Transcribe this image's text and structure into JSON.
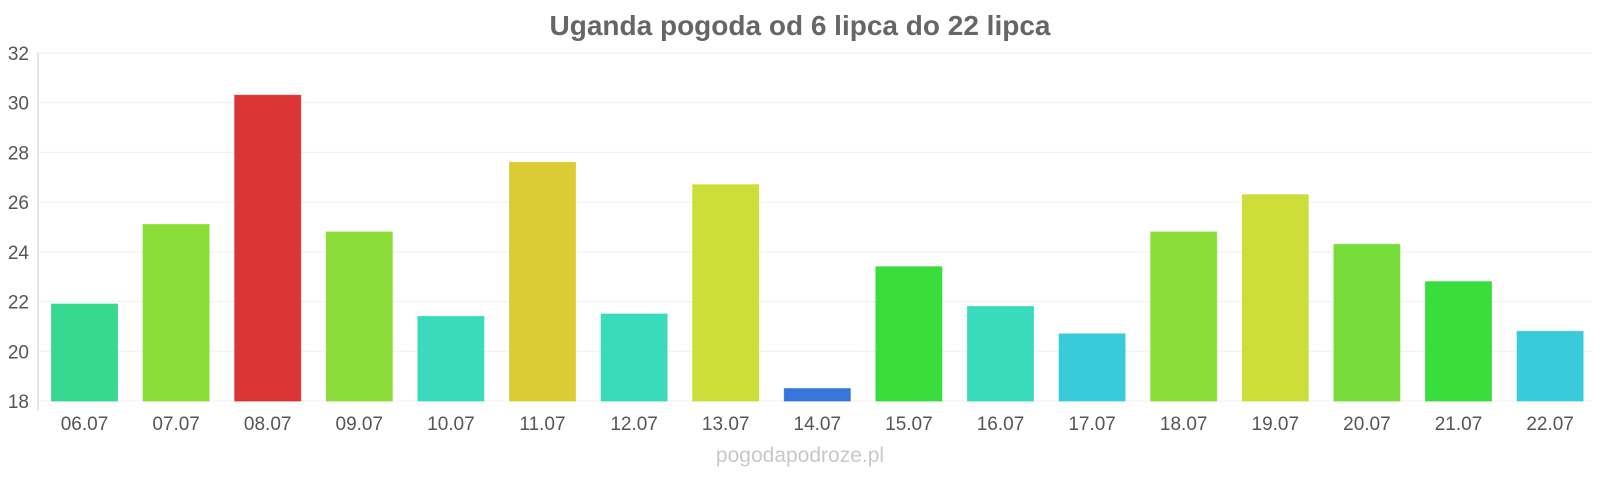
{
  "chart_data": {
    "type": "bar",
    "title": "Uganda pogoda od 6 lipca do 22 lipca",
    "xlabel": "",
    "ylabel": "",
    "categories": [
      "06.07",
      "07.07",
      "08.07",
      "09.07",
      "10.07",
      "11.07",
      "12.07",
      "13.07",
      "14.07",
      "15.07",
      "16.07",
      "17.07",
      "18.07",
      "19.07",
      "20.07",
      "21.07",
      "22.07"
    ],
    "values": [
      21.9,
      25.1,
      30.3,
      24.8,
      21.4,
      27.6,
      21.5,
      26.7,
      18.5,
      23.4,
      21.8,
      20.7,
      24.8,
      26.3,
      24.3,
      22.8,
      20.8
    ],
    "colors": [
      "#2ed68a",
      "#86db2f",
      "#d92a2a",
      "#86db2f",
      "#2fd9b8",
      "#d9c92a",
      "#2fd9b8",
      "#cadb2f",
      "#2e6fd9",
      "#2edb32",
      "#2fd9b8",
      "#2fc8d9",
      "#86db2f",
      "#cadb2f",
      "#6fdb2f",
      "#2edb32",
      "#2fc8d9"
    ],
    "ylim": [
      18,
      32
    ],
    "yticks": [
      18,
      20,
      22,
      24,
      26,
      28,
      30,
      32
    ],
    "grid": true,
    "legend": "none"
  },
  "watermark": "pogodapodroze.pl"
}
